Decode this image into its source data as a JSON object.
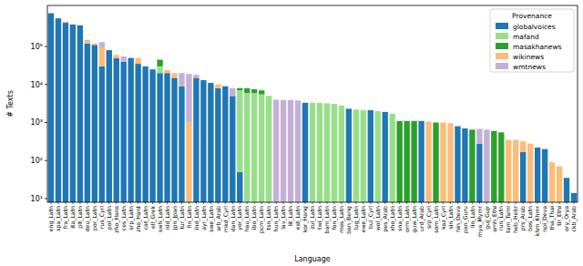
{
  "chart_data": {
    "type": "bar",
    "stacked": true,
    "log": "y",
    "grid": false,
    "legend": "upper right",
    "x_label": "Language",
    "y_label": "# Texts",
    "legend_title": "Provenance",
    "ylim": [
      8,
      1200000
    ],
    "yticks": [
      {
        "value": 10,
        "label": "10¹"
      },
      {
        "value": 100,
        "label": "10²"
      },
      {
        "value": 1000,
        "label": "10³"
      },
      {
        "value": 10000,
        "label": "10⁴"
      },
      {
        "value": 100000,
        "label": "10⁵"
      }
    ],
    "categories": [
      "eng_Latn",
      "spa_Latn",
      "fra_Latn",
      "ita_Latn",
      "plt_Latn",
      "deu_Latn",
      "por_Latn",
      "rus_Cyrl",
      "pol_Latn",
      "zho_Hans",
      "ces_Latn",
      "srp_Latn",
      "zho_Hant",
      "cat_Latn",
      "ell_Grek",
      "swh_Latn",
      "nld_Latn",
      "jpn_Jpan",
      "tur_Latn",
      "fin_Latn",
      "ind_Latn",
      "ayr_Latn",
      "swe_Latn",
      "arb_Arab",
      "mkd_Cyrl",
      "dan_Latn",
      "yor_Latn",
      "hau_Latn",
      "ibo_Latn",
      "pcm_Latn",
      "tsn_Latn",
      "hun_Latn",
      "lav_Latn",
      "lit_Latn",
      "est_Latn",
      "kor_Hang",
      "zul_Latn",
      "twi_Latn",
      "bam_Latn",
      "fon_Latn",
      "mos_Latn",
      "ben_Beng",
      "lug_Latn",
      "ewe_Latn",
      "bul_Cyrl",
      "wol_Latn",
      "pes_Arab",
      "xho_Latn",
      "sna_Latn",
      "orm_Latn",
      "guw_Latn",
      "urd_Arab",
      "srp_Cyrl",
      "som_Latn",
      "kaz_Cyrl",
      "sin_Latn",
      "hin_Deva",
      "pan_Guru",
      "lin_Latn",
      "mya_Mymr",
      "guj_Gujr",
      "amh_Ethi",
      "run_Latn",
      "tam_Taml",
      "heb_Hebr",
      "prs_Arab",
      "bos_Latn",
      "khm_Khmr",
      "npi_Deva",
      "tha_Thai",
      "tir_Ethi",
      "ory_Orya",
      "ckb_Arab"
    ],
    "series": [
      {
        "name": "globalvoices",
        "color": "#1f77b4",
        "values": [
          750000,
          550000,
          420000,
          380000,
          360000,
          120000,
          110000,
          30000,
          80000,
          50000,
          40000,
          50000,
          35000,
          30000,
          25000,
          20000,
          20000,
          15000,
          9000,
          null,
          15000,
          13000,
          11000,
          8000,
          9000,
          5000,
          50,
          null,
          null,
          null,
          null,
          null,
          null,
          null,
          null,
          3300,
          null,
          null,
          null,
          null,
          null,
          2300,
          null,
          null,
          2100,
          null,
          1900,
          null,
          null,
          null,
          null,
          1100,
          null,
          null,
          null,
          null,
          800,
          700,
          null,
          280,
          null,
          null,
          null,
          null,
          null,
          170,
          null,
          220,
          200,
          null,
          null,
          35,
          14
        ]
      },
      {
        "name": "mafand",
        "color": "#98df8a",
        "values": [
          null,
          null,
          null,
          null,
          null,
          null,
          null,
          null,
          null,
          null,
          null,
          null,
          null,
          null,
          null,
          10000,
          null,
          null,
          null,
          null,
          null,
          null,
          null,
          null,
          null,
          null,
          7000,
          6000,
          6000,
          5500,
          5000,
          null,
          null,
          null,
          null,
          null,
          3300,
          3300,
          3200,
          3100,
          2800,
          null,
          2200,
          2100,
          null,
          2000,
          null,
          1700,
          null,
          null,
          null,
          null,
          null,
          null,
          null,
          null,
          null,
          null,
          null,
          null,
          null,
          null,
          null,
          null,
          null,
          null,
          null,
          null,
          null,
          null,
          null,
          null,
          null
        ]
      },
      {
        "name": "masakhanews",
        "color": "#2ca02c",
        "values": [
          null,
          null,
          null,
          null,
          null,
          null,
          null,
          null,
          null,
          null,
          null,
          null,
          null,
          null,
          null,
          15000,
          null,
          null,
          null,
          null,
          null,
          null,
          null,
          null,
          null,
          null,
          1000,
          2000,
          1500,
          1500,
          null,
          null,
          null,
          null,
          null,
          null,
          null,
          null,
          null,
          null,
          null,
          null,
          null,
          null,
          null,
          null,
          null,
          null,
          1100,
          1100,
          1100,
          null,
          null,
          1000,
          null,
          null,
          null,
          null,
          650,
          null,
          null,
          600,
          550,
          null,
          null,
          null,
          null,
          null,
          null,
          null,
          null,
          null,
          null
        ]
      },
      {
        "name": "wikinews",
        "color": "#ffbb78",
        "values": [
          null,
          null,
          30000,
          null,
          null,
          20000,
          10000,
          60000,
          null,
          10000,
          null,
          null,
          15000,
          null,
          null,
          null,
          4000,
          5000,
          null,
          1000,
          null,
          null,
          null,
          2000,
          null,
          null,
          null,
          null,
          null,
          null,
          null,
          null,
          null,
          null,
          null,
          null,
          null,
          null,
          null,
          null,
          null,
          null,
          null,
          null,
          null,
          null,
          null,
          null,
          null,
          null,
          null,
          null,
          1050,
          null,
          1000,
          950,
          null,
          null,
          null,
          null,
          null,
          null,
          null,
          350,
          350,
          150,
          280,
          null,
          null,
          90,
          70,
          null,
          null
        ]
      },
      {
        "name": "wmtnews",
        "color": "#c5b0d5",
        "values": [
          null,
          null,
          null,
          null,
          null,
          10000,
          null,
          40000,
          null,
          null,
          15000,
          null,
          null,
          null,
          null,
          null,
          null,
          null,
          11000,
          18000,
          3000,
          null,
          null,
          null,
          null,
          3000,
          null,
          null,
          null,
          null,
          null,
          4000,
          3900,
          3900,
          3800,
          null,
          null,
          null,
          null,
          null,
          null,
          null,
          null,
          null,
          null,
          null,
          null,
          null,
          null,
          null,
          null,
          null,
          null,
          null,
          null,
          null,
          null,
          null,
          null,
          400,
          650,
          null,
          null,
          null,
          null,
          null,
          null,
          null,
          null,
          null,
          null,
          null,
          null
        ]
      }
    ]
  }
}
